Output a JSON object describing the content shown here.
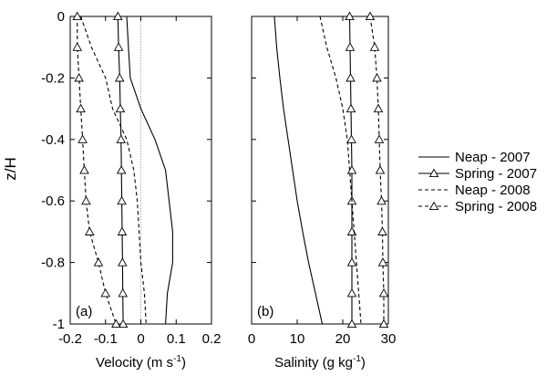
{
  "y_axis_label": "z/H",
  "chart_data": [
    {
      "type": "line",
      "panel_label": "(a)",
      "xlabel_prefix": "Velocity (m s",
      "xlabel_sup": "-1",
      "xlabel_suffix": ")",
      "xlim": [
        -0.2,
        0.2
      ],
      "ylim": [
        -1,
        0
      ],
      "xticks": [
        -0.2,
        -0.1,
        0,
        0.1,
        0.2
      ],
      "xtick_labels": [
        "-0.2",
        "-0.1",
        "0",
        "0.1",
        "0.2"
      ],
      "yticks": [
        0,
        -0.2,
        -0.4,
        -0.6,
        -0.8,
        -1
      ],
      "ytick_labels": [
        "0",
        "-0.2",
        "-0.4",
        "-0.6",
        "-0.8",
        "-1"
      ],
      "zero_reference_line": true,
      "series": [
        {
          "name": "Neap - 2007",
          "style": "solid",
          "marker": "none",
          "points": [
            [
              -0.04,
              0
            ],
            [
              -0.035,
              -0.1
            ],
            [
              -0.03,
              -0.2
            ],
            [
              0.0,
              -0.3
            ],
            [
              0.04,
              -0.4
            ],
            [
              0.07,
              -0.5
            ],
            [
              0.08,
              -0.6
            ],
            [
              0.09,
              -0.7
            ],
            [
              0.09,
              -0.8
            ],
            [
              0.075,
              -0.9
            ],
            [
              0.07,
              -1.0
            ]
          ]
        },
        {
          "name": "Spring - 2007",
          "style": "solid",
          "marker": "triangle",
          "points": [
            [
              -0.065,
              0
            ],
            [
              -0.063,
              -0.1
            ],
            [
              -0.06,
              -0.2
            ],
            [
              -0.058,
              -0.3
            ],
            [
              -0.056,
              -0.4
            ],
            [
              -0.055,
              -0.5
            ],
            [
              -0.054,
              -0.6
            ],
            [
              -0.053,
              -0.7
            ],
            [
              -0.052,
              -0.8
            ],
            [
              -0.051,
              -0.9
            ],
            [
              -0.05,
              -1.0
            ]
          ]
        },
        {
          "name": "Neap - 2008",
          "style": "dashed",
          "marker": "none",
          "points": [
            [
              -0.17,
              0
            ],
            [
              -0.14,
              -0.1
            ],
            [
              -0.1,
              -0.2
            ],
            [
              -0.08,
              -0.3
            ],
            [
              -0.04,
              -0.4
            ],
            [
              -0.02,
              -0.5
            ],
            [
              -0.01,
              -0.6
            ],
            [
              -0.005,
              -0.7
            ],
            [
              0.0,
              -0.8
            ],
            [
              0.01,
              -0.9
            ],
            [
              0.015,
              -1.0
            ]
          ]
        },
        {
          "name": "Spring - 2008",
          "style": "dashed",
          "marker": "triangle",
          "points": [
            [
              -0.18,
              0
            ],
            [
              -0.18,
              -0.1
            ],
            [
              -0.175,
              -0.2
            ],
            [
              -0.17,
              -0.3
            ],
            [
              -0.165,
              -0.4
            ],
            [
              -0.16,
              -0.5
            ],
            [
              -0.155,
              -0.6
            ],
            [
              -0.145,
              -0.7
            ],
            [
              -0.12,
              -0.8
            ],
            [
              -0.1,
              -0.9
            ],
            [
              -0.07,
              -1.0
            ]
          ]
        }
      ]
    },
    {
      "type": "line",
      "panel_label": "(b)",
      "xlabel_prefix": "Salinity (g kg",
      "xlabel_sup": "-1",
      "xlabel_suffix": ")",
      "xlim": [
        0,
        30
      ],
      "ylim": [
        -1,
        0
      ],
      "xticks": [
        0,
        10,
        20,
        30
      ],
      "xtick_labels": [
        "0",
        "10",
        "20",
        "30"
      ],
      "yticks": [
        0,
        -0.2,
        -0.4,
        -0.6,
        -0.8,
        -1
      ],
      "ytick_labels": [],
      "zero_reference_line": false,
      "series": [
        {
          "name": "Neap - 2007",
          "style": "solid",
          "marker": "none",
          "points": [
            [
              5,
              0
            ],
            [
              5.5,
              -0.1
            ],
            [
              6.2,
              -0.2
            ],
            [
              7,
              -0.3
            ],
            [
              8,
              -0.4
            ],
            [
              9,
              -0.5
            ],
            [
              10,
              -0.6
            ],
            [
              11.2,
              -0.7
            ],
            [
              12.5,
              -0.8
            ],
            [
              14,
              -0.9
            ],
            [
              15.5,
              -1.0
            ]
          ]
        },
        {
          "name": "Spring - 2007",
          "style": "solid",
          "marker": "triangle",
          "points": [
            [
              21.5,
              0
            ],
            [
              21.6,
              -0.1
            ],
            [
              21.7,
              -0.2
            ],
            [
              21.8,
              -0.3
            ],
            [
              21.9,
              -0.4
            ],
            [
              22,
              -0.5
            ],
            [
              22,
              -0.6
            ],
            [
              22,
              -0.7
            ],
            [
              22,
              -0.8
            ],
            [
              22,
              -0.9
            ],
            [
              22,
              -1.0
            ]
          ]
        },
        {
          "name": "Neap - 2008",
          "style": "dashed",
          "marker": "none",
          "points": [
            [
              15,
              0
            ],
            [
              16.5,
              -0.1
            ],
            [
              18.5,
              -0.2
            ],
            [
              20,
              -0.3
            ],
            [
              21,
              -0.4
            ],
            [
              21.5,
              -0.5
            ],
            [
              22,
              -0.6
            ],
            [
              22.5,
              -0.7
            ],
            [
              23,
              -0.8
            ],
            [
              23.5,
              -0.9
            ],
            [
              24,
              -1.0
            ]
          ]
        },
        {
          "name": "Spring - 2008",
          "style": "dashed",
          "marker": "triangle",
          "points": [
            [
              26,
              0
            ],
            [
              27,
              -0.1
            ],
            [
              27.5,
              -0.2
            ],
            [
              27.8,
              -0.3
            ],
            [
              28,
              -0.4
            ],
            [
              28.2,
              -0.5
            ],
            [
              28.5,
              -0.6
            ],
            [
              28.7,
              -0.7
            ],
            [
              28.8,
              -0.8
            ],
            [
              29,
              -0.9
            ],
            [
              29,
              -1.0
            ]
          ]
        }
      ]
    }
  ],
  "legend": [
    {
      "label": "Neap - 2007",
      "style": "solid",
      "marker": "none"
    },
    {
      "label": "Spring - 2007",
      "style": "solid",
      "marker": "triangle"
    },
    {
      "label": "Neap - 2008",
      "style": "dashed",
      "marker": "none"
    },
    {
      "label": "Spring - 2008",
      "style": "dashed",
      "marker": "triangle"
    }
  ]
}
